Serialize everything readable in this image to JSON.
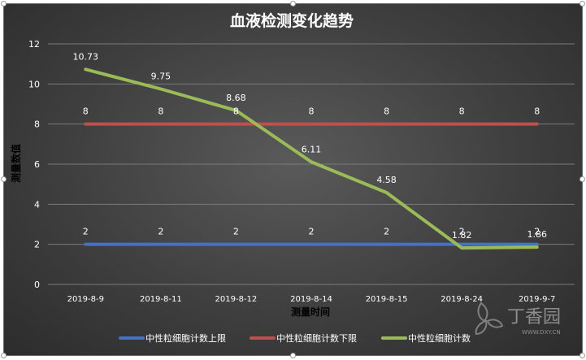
{
  "chart_data": {
    "type": "line",
    "title": "血液检测变化趋势",
    "xlabel": "测量时间",
    "ylabel": "测量数值",
    "ylim": [
      0,
      12
    ],
    "yticks": [
      0,
      2,
      4,
      6,
      8,
      10,
      12
    ],
    "grid": true,
    "legend_position": "bottom",
    "categories": [
      "2019-8-9",
      "2019-8-11",
      "2019-8-12",
      "2019-8-14",
      "2019-8-15",
      "2019-8-24",
      "2019-9-7"
    ],
    "series": [
      {
        "name": "中性粒细胞计数上限",
        "values": [
          2,
          2,
          2,
          2,
          2,
          2,
          2
        ],
        "color": "#4472C4",
        "labels": [
          "2",
          "2",
          "2",
          "2",
          "2",
          "2",
          "2"
        ]
      },
      {
        "name": "中性粒细胞计数下限",
        "values": [
          8,
          8,
          8,
          8,
          8,
          8,
          8
        ],
        "color": "#C0504D",
        "labels": [
          "8",
          "8",
          "8",
          "8",
          "8",
          "8",
          "8"
        ]
      },
      {
        "name": "中性粒细胞计数",
        "values": [
          10.73,
          9.75,
          8.68,
          6.11,
          4.58,
          1.82,
          1.86
        ],
        "color": "#9BBB59",
        "labels": [
          "10.73",
          "9.75",
          "8.68",
          "6.11",
          "4.58",
          "1.82",
          "1.86"
        ]
      }
    ]
  },
  "watermark": {
    "text": "丁香园",
    "url_text": "WWW.DXY.CN"
  }
}
